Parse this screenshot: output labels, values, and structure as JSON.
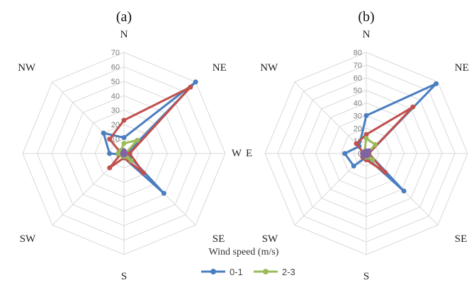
{
  "chart_data": [
    {
      "type": "radar",
      "panel_label": "(a)",
      "directions": [
        "N",
        "NE",
        "E",
        "SE",
        "S",
        "SW",
        "W",
        "NW"
      ],
      "rlim": [
        0,
        70
      ],
      "ticks": [
        0,
        10,
        20,
        30,
        40,
        50,
        60,
        70
      ],
      "series": [
        {
          "name": "0-1",
          "color": "#4a7ebf",
          "values": [
            11,
            70,
            2,
            39,
            3,
            1,
            10,
            20
          ]
        },
        {
          "name": "",
          "color": "#c0504d",
          "values": [
            23,
            65,
            4,
            19,
            3,
            14,
            2,
            14
          ]
        },
        {
          "name": "2-3",
          "color": "#9bbb59",
          "values": [
            7,
            13,
            1,
            7,
            2,
            2,
            4,
            3
          ]
        },
        {
          "name": "",
          "color": "#8064a2",
          "values": [
            2,
            1,
            1,
            1,
            1,
            1,
            1,
            1
          ]
        }
      ]
    },
    {
      "type": "radar",
      "panel_label": "(b)",
      "directions": [
        "N",
        "NE",
        "E",
        "SE",
        "S",
        "SW",
        "W",
        "NW"
      ],
      "rlim": [
        0,
        80
      ],
      "ticks": [
        0,
        10,
        20,
        30,
        40,
        50,
        60,
        70,
        80
      ],
      "series": [
        {
          "name": "0-1",
          "color": "#4a7ebf",
          "values": [
            30,
            78,
            2,
            42,
            3,
            14,
            17,
            8
          ]
        },
        {
          "name": "",
          "color": "#c0504d",
          "values": [
            15,
            52,
            2,
            21,
            5,
            4,
            2,
            11
          ]
        },
        {
          "name": "2-3",
          "color": "#9bbb59",
          "values": [
            12,
            10,
            1,
            7,
            3,
            1,
            3,
            2
          ]
        },
        {
          "name": "",
          "color": "#8064a2",
          "values": [
            2,
            3,
            1,
            2,
            2,
            3,
            3,
            2
          ]
        }
      ]
    }
  ],
  "legend": {
    "title": "Wind speed (m/s)",
    "entries": [
      {
        "label": "0-1",
        "color": "#4a7ebf"
      },
      {
        "label": "2-3",
        "color": "#9bbb59"
      }
    ]
  }
}
